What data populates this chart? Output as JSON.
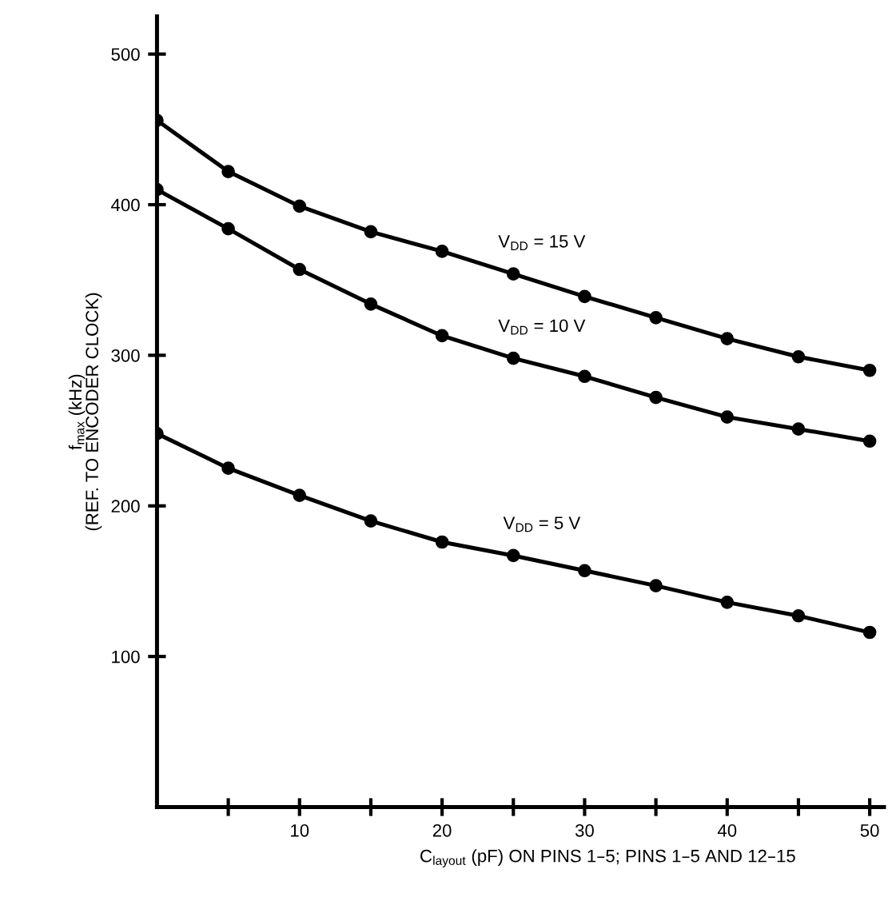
{
  "chart_data": {
    "type": "line",
    "xlabel": "C$_{layout}$ (pF) ON PINS 1–5; PINS 1–5 AND 12–15",
    "ylabel": "f$_{max}$ (kHz)\n(REF. TO ENCODER CLOCK)",
    "x": [
      0,
      5,
      10,
      15,
      20,
      25,
      30,
      35,
      40,
      45,
      50
    ],
    "series": [
      {
        "name": "V$_{DD}$ = 15 V",
        "color": "#000000",
        "values": [
          456,
          422,
          399,
          382,
          369,
          354,
          339,
          325,
          311,
          299,
          290
        ]
      },
      {
        "name": "V$_{DD}$ = 10 V",
        "color": "#000000",
        "values": [
          410,
          384,
          357,
          334,
          313,
          298,
          286,
          272,
          259,
          251,
          243
        ]
      },
      {
        "name": "V$_{DD}$ = 5 V",
        "color": "#000000",
        "values": [
          248,
          225,
          207,
          190,
          176,
          167,
          157,
          147,
          136,
          127,
          116
        ]
      }
    ],
    "xlim": [
      0,
      51
    ],
    "ylim": [
      0,
      525
    ],
    "xticks": [
      {
        "value": 5,
        "label": null
      },
      10,
      {
        "value": 15,
        "label": null
      },
      20,
      {
        "value": 25,
        "label": null
      },
      30,
      {
        "value": 35,
        "label": null
      },
      40,
      {
        "value": 45,
        "label": null
      },
      50
    ],
    "yticks": [
      100,
      200,
      300,
      400,
      500
    ],
    "grid": false,
    "legend": false,
    "marker": "circle",
    "line_style": "solid"
  }
}
